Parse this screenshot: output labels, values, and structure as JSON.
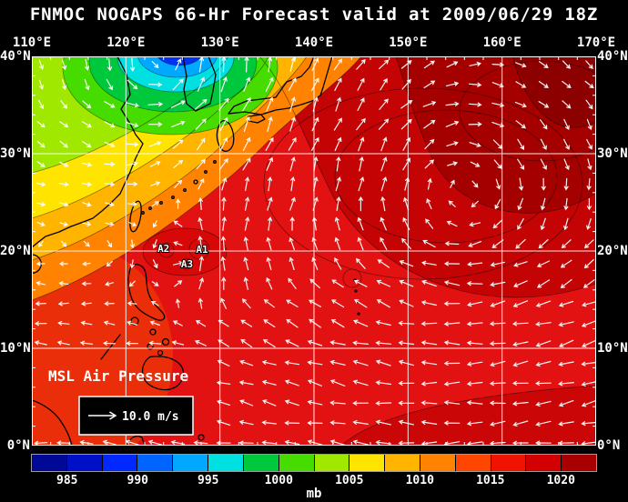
{
  "title": "FNMOC NOGAPS 66-Hr Forecast valid at 2009/06/29 18Z",
  "axes": {
    "lon_top": [
      "110°E",
      "120°E",
      "130°E",
      "140°E",
      "150°E",
      "160°E",
      "170°E"
    ],
    "lat_left": [
      "40°N",
      "30°N",
      "20°N",
      "10°N",
      "0°N"
    ],
    "lat_right": [
      "40°N",
      "30°N",
      "20°N",
      "10°N",
      "0°N"
    ]
  },
  "map": {
    "field_label": "MSL Air Pressure",
    "legend_label": "10.0 m/s",
    "storms": [
      {
        "id": "A1",
        "lon": 128.1,
        "lat": 20.2
      },
      {
        "id": "A2",
        "lon": 124.0,
        "lat": 20.3
      },
      {
        "id": "A3",
        "lon": 126.5,
        "lat": 18.7
      }
    ]
  },
  "colorbar": {
    "unit": "mb",
    "min_mb": 982.5,
    "max_mb": 1022.5,
    "segment_colors": [
      "#000896",
      "#0010C8",
      "#0028FF",
      "#0064FF",
      "#00A8FF",
      "#00E0E0",
      "#00C83C",
      "#46DC00",
      "#A0E800",
      "#FFE400",
      "#FFB400",
      "#FF8200",
      "#FF4600",
      "#F01400",
      "#D20000",
      "#A80000"
    ],
    "tick_values": [
      985,
      990,
      995,
      1000,
      1005,
      1010,
      1015,
      1020
    ]
  },
  "chart_data": {
    "type": "heatmap",
    "variable": "Mean Sea Level Air Pressure",
    "unit": "mb",
    "source_model": "FNMOC NOGAPS",
    "forecast_hour": 66,
    "valid": "2009/06/29 18Z",
    "x_axis": {
      "label": "longitude",
      "min": "110°E",
      "max": "170°E",
      "grid_step_deg": 10
    },
    "y_axis": {
      "label": "latitude",
      "min": "0°N",
      "max": "40°N",
      "grid_step_deg": 10
    },
    "color_scale_mb": {
      "min": 982.5,
      "max": 1022.5,
      "step": 2.5,
      "ticks": [
        985,
        990,
        995,
        1000,
        1005,
        1010,
        1015,
        1020
      ]
    },
    "overlay_vectors": {
      "type": "wind",
      "reference_speed": "10.0 m/s",
      "color": "#FFFFFF"
    },
    "features": [
      {
        "name": "extratropical low",
        "approx_lon_e": 124,
        "approx_lat_n": 39,
        "approx_center_mb": 988
      },
      {
        "name": "broad subtropical high",
        "region": "140-170°E, 20-40°N",
        "approx_max_mb": 1020
      },
      {
        "name": "tropical system A1",
        "lon_e": 128.1,
        "lat_n": 20.2,
        "approx_mb": 1008
      },
      {
        "name": "tropical system A2",
        "lon_e": 124.0,
        "lat_n": 20.3,
        "approx_mb": 1008
      },
      {
        "name": "tropical system A3",
        "lon_e": 126.5,
        "lat_n": 18.7,
        "approx_mb": 1008
      },
      {
        "name": "tropics background",
        "approx_mb": 1010
      }
    ]
  }
}
